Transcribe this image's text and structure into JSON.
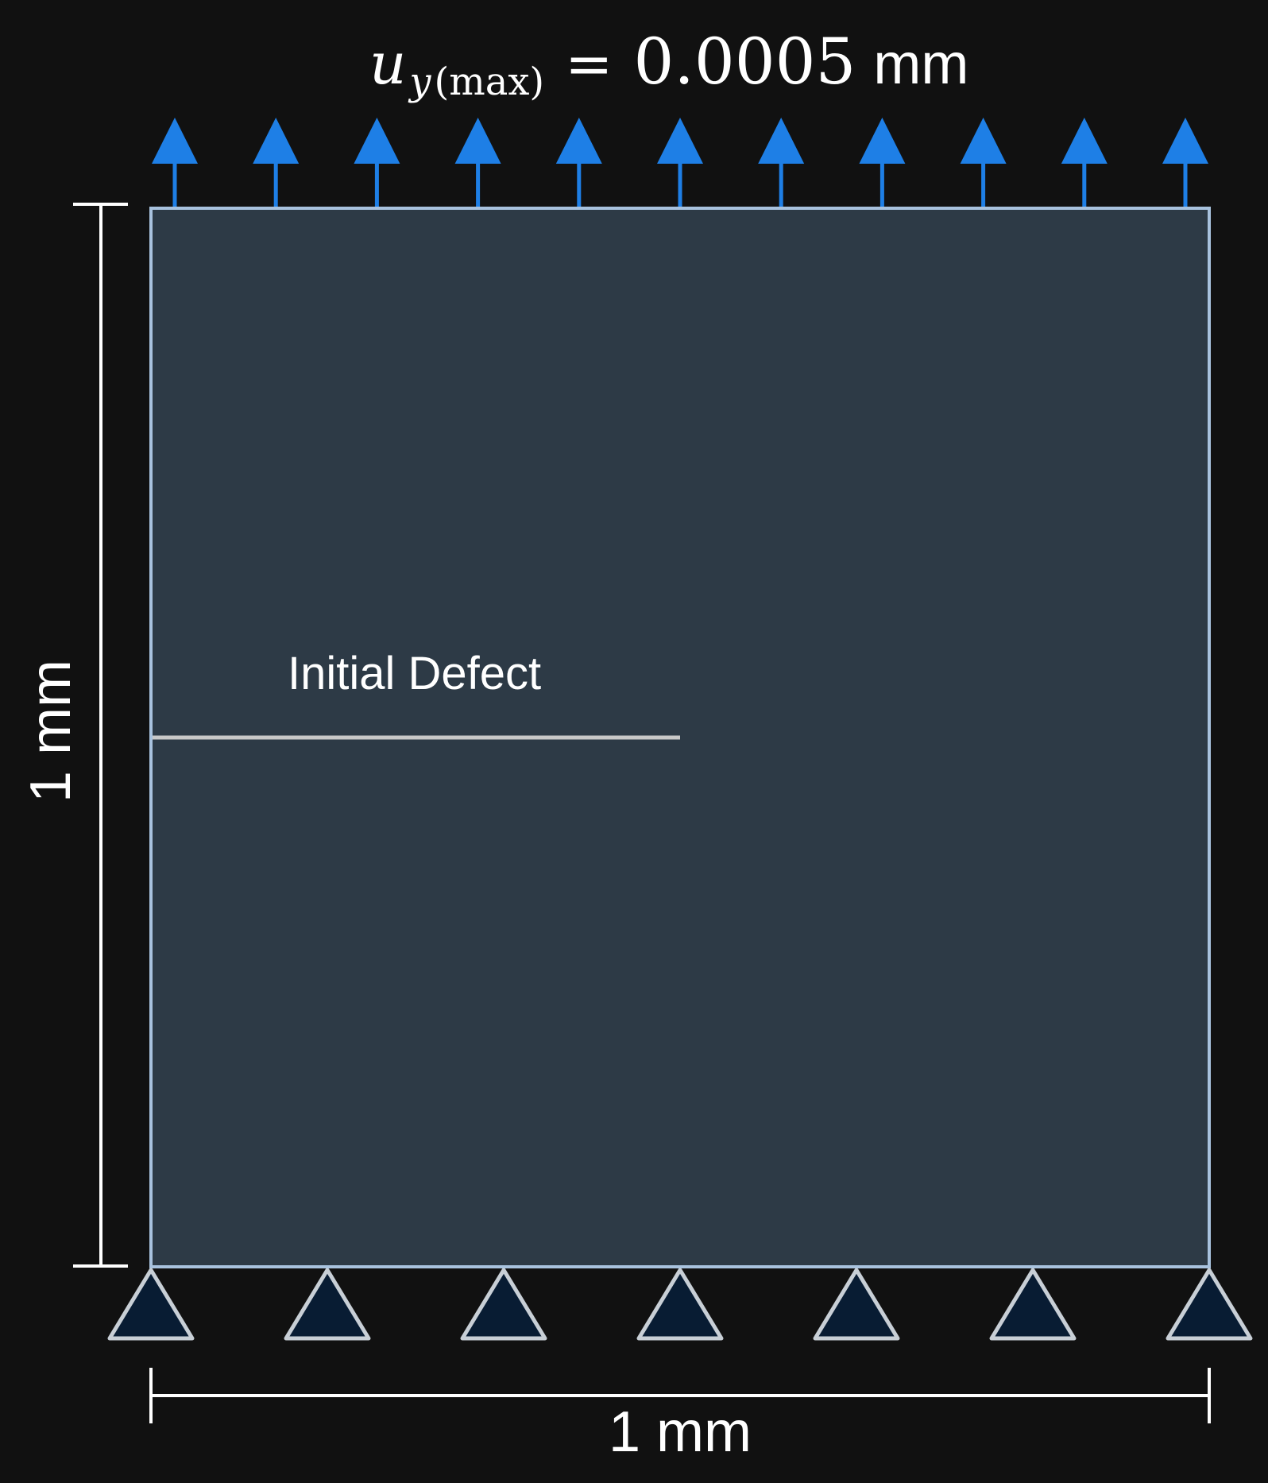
{
  "load": {
    "symbol": "u",
    "subscript": "y(max)",
    "sub_var": "y",
    "sub_paren": "(max)",
    "equals": "=",
    "value": "0.0005",
    "unit": "mm",
    "arrow_count": 11
  },
  "specimen": {
    "defect_label": "Initial Defect",
    "defect_length_fraction": 0.5,
    "defect_height_fraction": 0.5
  },
  "supports": {
    "count": 7
  },
  "dimensions": {
    "height_label": "1 mm",
    "width_label": "1 mm"
  },
  "colors": {
    "background": "#111111",
    "plate_fill": "#2d3a46",
    "plate_border": "#a8c2de",
    "arrow": "#1e7fe6",
    "support_fill": "#081c33",
    "support_stroke": "#c8cfd6",
    "defect_line": "#c8c8c8",
    "dimension_line": "#ffffff",
    "text": "#ffffff"
  }
}
